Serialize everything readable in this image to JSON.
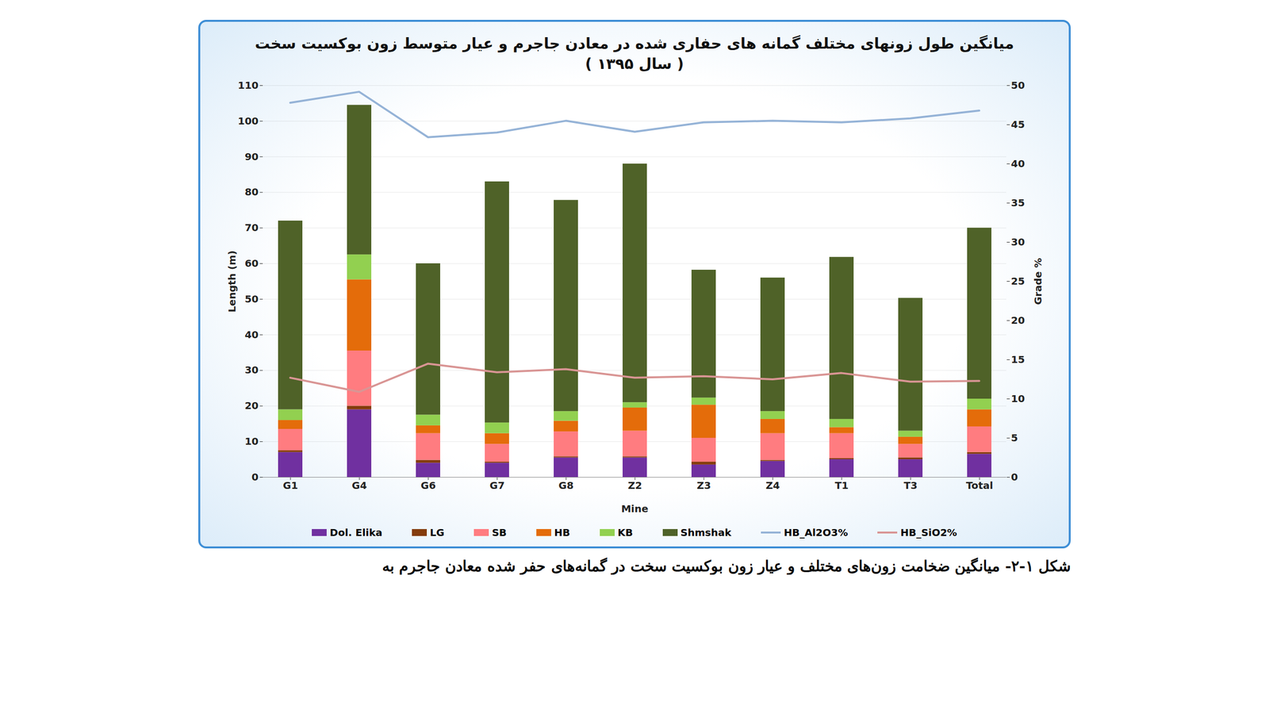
{
  "chart_data": {
    "type": "bar",
    "title": "میانگین طول زونهای مختلف گمانه های حفاری شده  در معادن جاجرم و عیار متوسط زون بوکسیت سخت",
    "subtitle": "( سال ۱۳۹۵ )",
    "caption": "شکل ۱-۲- میانگین ضخامت زون‌های مختلف و عیار زون بوکسیت سخت در گمانه‌های حفر شده معادن جاجرم به",
    "x_label": "Mine",
    "y_label": "Length (m)",
    "y2_label": "Grade %",
    "categories": [
      "G1",
      "G4",
      "G6",
      "G7",
      "G8",
      "Z2",
      "Z3",
      "Z4",
      "T1",
      "T3",
      "Total"
    ],
    "stacked": true,
    "grid": true,
    "legend": "bottom",
    "ylim": [
      0,
      110
    ],
    "yticks": [
      0,
      10,
      20,
      30,
      40,
      50,
      60,
      70,
      80,
      90,
      100,
      110
    ],
    "y2lim": [
      0,
      50
    ],
    "y2ticks": [
      0,
      5,
      10,
      15,
      20,
      25,
      30,
      35,
      40,
      45,
      50
    ],
    "series": [
      {
        "name": "Dol. Elika",
        "type": "bar",
        "color": "#7030a0",
        "values": [
          7,
          19,
          4,
          4,
          5.5,
          5.5,
          3.5,
          4.5,
          5,
          5,
          6.5
        ]
      },
      {
        "name": "LG",
        "type": "bar",
        "color": "#843c0c",
        "values": [
          0.5,
          1,
          0.8,
          0.3,
          0.3,
          0.3,
          0.8,
          0.3,
          0.3,
          0.5,
          0.5
        ]
      },
      {
        "name": "SB",
        "type": "bar",
        "color": "#ff7c80",
        "values": [
          6,
          15.5,
          7.5,
          5,
          7,
          7.2,
          6.7,
          7.5,
          7,
          3.8,
          7.2
        ]
      },
      {
        "name": "HB",
        "type": "bar",
        "color": "#e46c0a",
        "values": [
          2.5,
          20,
          2.2,
          3,
          3,
          6.5,
          9.3,
          4,
          1.7,
          2,
          4.8
        ]
      },
      {
        "name": "KB",
        "type": "bar",
        "color": "#92d050",
        "values": [
          3,
          7,
          3,
          3,
          2.7,
          1.5,
          2,
          2.2,
          2.3,
          1.7,
          3
        ]
      },
      {
        "name": "Shmshak",
        "type": "bar",
        "color": "#4f6228",
        "values": [
          53,
          42,
          42.5,
          67.7,
          59.3,
          67,
          35.9,
          37.5,
          45.5,
          37.3,
          48
        ]
      },
      {
        "name": "HB_Al2O3%",
        "type": "line",
        "axis": "y2",
        "color": "#95b3d7",
        "values": [
          47.8,
          49.2,
          43.4,
          44,
          45.5,
          44.1,
          45.3,
          45.5,
          45.3,
          45.8,
          46.8
        ]
      },
      {
        "name": "HB_SiO2%",
        "type": "line",
        "axis": "y2",
        "color": "#d99594",
        "values": [
          12.7,
          10.9,
          14.5,
          13.4,
          13.8,
          12.7,
          12.9,
          12.5,
          13.3,
          12.2,
          12.3
        ]
      }
    ]
  }
}
